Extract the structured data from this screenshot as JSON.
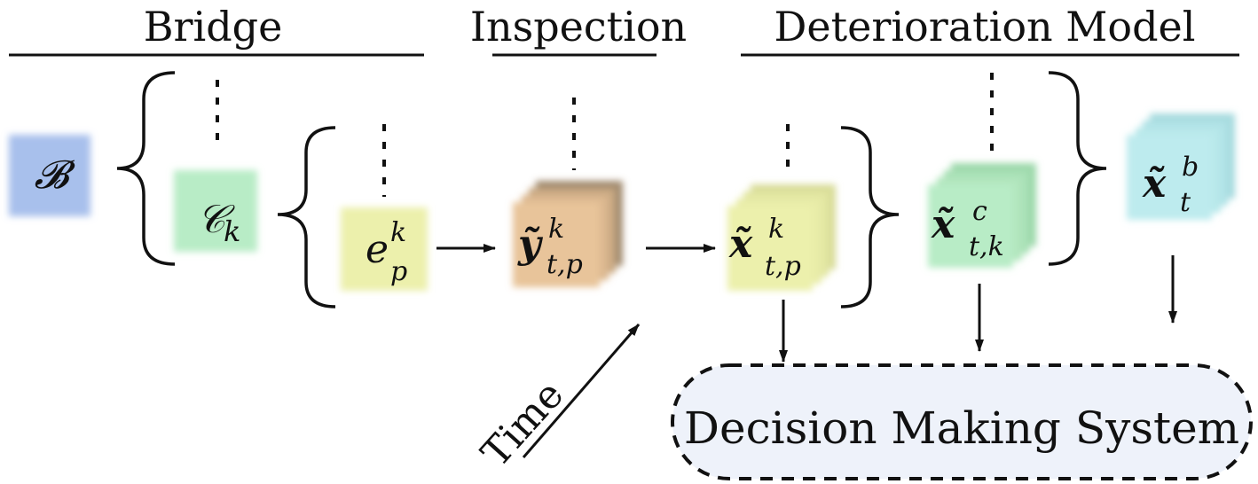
{
  "headers": {
    "bridge": "Bridge",
    "inspection": "Inspection",
    "deterioration": "Deterioration Model"
  },
  "nodes": {
    "bridge": {
      "symbol": "𝓑",
      "sup": "",
      "sub": "",
      "color": "#a8c0ec"
    },
    "component": {
      "symbol": "𝒞",
      "sup": "",
      "sub": "k",
      "color": "#b8ecc6"
    },
    "element": {
      "symbol": "e",
      "sup": "k",
      "sub": "p",
      "color": "#ecf0ac"
    },
    "inspection": {
      "symbol": "ỹ",
      "sup": "k",
      "sub": "t,p",
      "color": "#e8c49a"
    },
    "element_state": {
      "symbol": "x̃",
      "sup": "k",
      "sub": "t,p",
      "color": "#ecf0ac"
    },
    "component_state": {
      "symbol": "x̃",
      "sup": "c",
      "sub": "t,k",
      "color": "#b8ecc6"
    },
    "bridge_state": {
      "symbol": "x̃",
      "sup": "b",
      "sub": "t",
      "color": "#bdebee"
    }
  },
  "time_label": "Time",
  "decision_label": "Decision Making System",
  "colors": {
    "decision_fill": "#eef2fa"
  }
}
